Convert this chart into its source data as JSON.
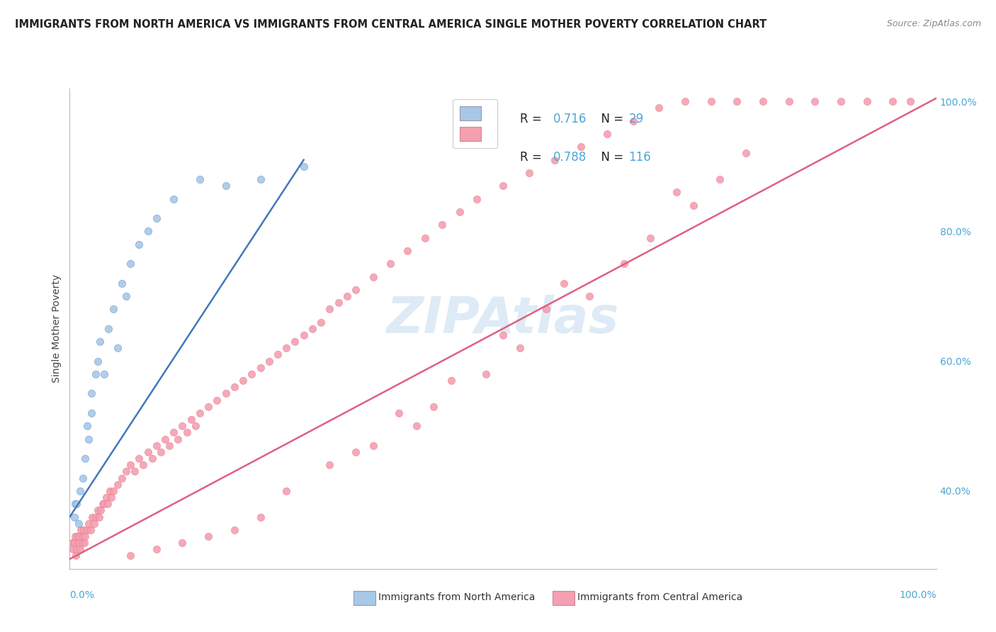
{
  "title": "IMMIGRANTS FROM NORTH AMERICA VS IMMIGRANTS FROM CENTRAL AMERICA SINGLE MOTHER POVERTY CORRELATION CHART",
  "source": "Source: ZipAtlas.com",
  "ylabel": "Single Mother Poverty",
  "legend_label1": "Immigrants from North America",
  "legend_label2": "Immigrants from Central America",
  "R1": "0.716",
  "N1": "29",
  "R2": "0.788",
  "N2": "116",
  "color_blue": "#a8c8e8",
  "color_blue_line": "#4477bb",
  "color_pink": "#f4a0b0",
  "color_pink_line": "#e06080",
  "watermark_text": "ZIPAtlas",
  "watermark_color": "#c8dff0",
  "grid_color": "#d8d8d8",
  "xlim": [
    0.0,
    1.0
  ],
  "ylim": [
    0.28,
    1.02
  ],
  "right_yticks": [
    0.4,
    0.6,
    0.8,
    1.0
  ],
  "right_yticklabels": [
    "40.0%",
    "60.0%",
    "80.0%",
    "100.0%"
  ],
  "north_america_x": [
    0.005,
    0.006,
    0.008,
    0.01,
    0.012,
    0.015,
    0.018,
    0.02,
    0.022,
    0.025,
    0.025,
    0.03,
    0.032,
    0.035,
    0.04,
    0.045,
    0.05,
    0.055,
    0.06,
    0.065,
    0.07,
    0.08,
    0.09,
    0.1,
    0.12,
    0.15,
    0.18,
    0.22,
    0.27
  ],
  "north_america_y": [
    0.36,
    0.38,
    0.38,
    0.35,
    0.4,
    0.42,
    0.45,
    0.5,
    0.48,
    0.52,
    0.55,
    0.58,
    0.6,
    0.63,
    0.58,
    0.65,
    0.68,
    0.62,
    0.72,
    0.7,
    0.75,
    0.78,
    0.8,
    0.82,
    0.85,
    0.88,
    0.87,
    0.88,
    0.9
  ],
  "central_america_x": [
    0.003,
    0.004,
    0.005,
    0.006,
    0.007,
    0.008,
    0.009,
    0.01,
    0.011,
    0.012,
    0.013,
    0.014,
    0.015,
    0.016,
    0.017,
    0.018,
    0.02,
    0.022,
    0.024,
    0.026,
    0.028,
    0.03,
    0.032,
    0.034,
    0.036,
    0.038,
    0.04,
    0.042,
    0.044,
    0.046,
    0.048,
    0.05,
    0.055,
    0.06,
    0.065,
    0.07,
    0.075,
    0.08,
    0.085,
    0.09,
    0.095,
    0.1,
    0.105,
    0.11,
    0.115,
    0.12,
    0.125,
    0.13,
    0.135,
    0.14,
    0.145,
    0.15,
    0.16,
    0.17,
    0.18,
    0.19,
    0.2,
    0.21,
    0.22,
    0.23,
    0.24,
    0.25,
    0.26,
    0.27,
    0.28,
    0.29,
    0.3,
    0.31,
    0.32,
    0.33,
    0.35,
    0.37,
    0.39,
    0.41,
    0.43,
    0.45,
    0.47,
    0.5,
    0.53,
    0.56,
    0.59,
    0.62,
    0.65,
    0.68,
    0.71,
    0.74,
    0.77,
    0.8,
    0.83,
    0.86,
    0.89,
    0.92,
    0.95,
    0.97,
    0.7,
    0.4,
    0.55,
    0.3,
    0.25,
    0.35,
    0.42,
    0.48,
    0.52,
    0.6,
    0.64,
    0.67,
    0.72,
    0.75,
    0.78,
    0.5,
    0.33,
    0.38,
    0.44,
    0.57,
    0.22,
    0.19,
    0.16,
    0.13,
    0.1,
    0.07
  ],
  "central_america_y": [
    0.32,
    0.31,
    0.32,
    0.33,
    0.3,
    0.31,
    0.33,
    0.32,
    0.33,
    0.31,
    0.34,
    0.32,
    0.33,
    0.34,
    0.32,
    0.33,
    0.34,
    0.35,
    0.34,
    0.36,
    0.35,
    0.36,
    0.37,
    0.36,
    0.37,
    0.38,
    0.38,
    0.39,
    0.38,
    0.4,
    0.39,
    0.4,
    0.41,
    0.42,
    0.43,
    0.44,
    0.43,
    0.45,
    0.44,
    0.46,
    0.45,
    0.47,
    0.46,
    0.48,
    0.47,
    0.49,
    0.48,
    0.5,
    0.49,
    0.51,
    0.5,
    0.52,
    0.53,
    0.54,
    0.55,
    0.56,
    0.57,
    0.58,
    0.59,
    0.6,
    0.61,
    0.62,
    0.63,
    0.64,
    0.65,
    0.66,
    0.68,
    0.69,
    0.7,
    0.71,
    0.73,
    0.75,
    0.77,
    0.79,
    0.81,
    0.83,
    0.85,
    0.87,
    0.89,
    0.91,
    0.93,
    0.95,
    0.97,
    0.99,
    1.0,
    1.0,
    1.0,
    1.0,
    1.0,
    1.0,
    1.0,
    1.0,
    1.0,
    1.0,
    0.86,
    0.5,
    0.68,
    0.44,
    0.4,
    0.47,
    0.53,
    0.58,
    0.62,
    0.7,
    0.75,
    0.79,
    0.84,
    0.88,
    0.92,
    0.64,
    0.46,
    0.52,
    0.57,
    0.72,
    0.36,
    0.34,
    0.33,
    0.32,
    0.31,
    0.3
  ]
}
